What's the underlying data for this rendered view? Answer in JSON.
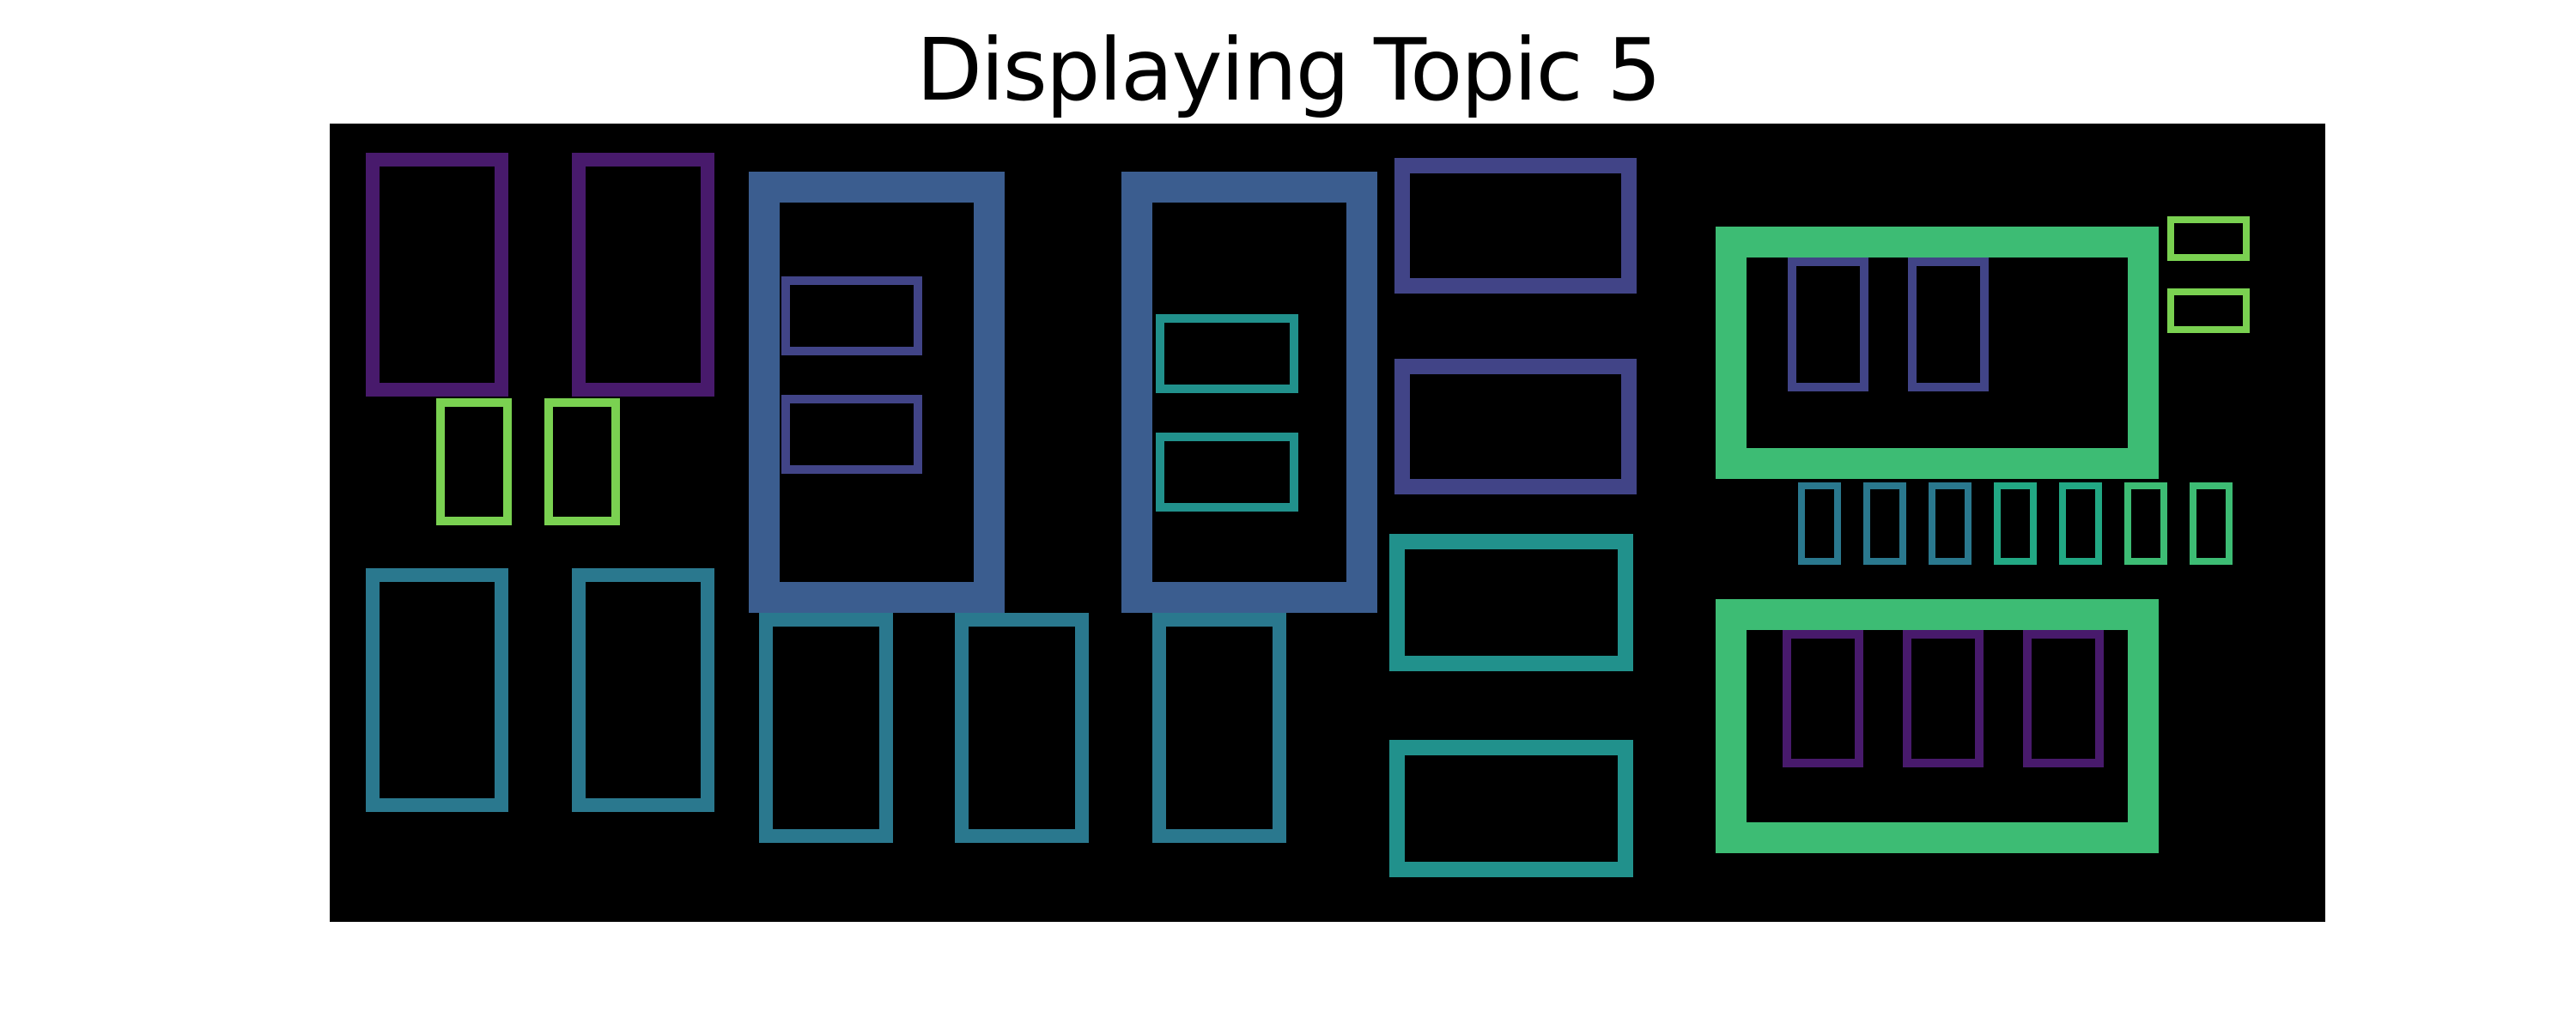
{
  "title": "Displaying Topic 5",
  "canvas_background": "#000000",
  "page_background": "#ffffff",
  "palette": {
    "dark_purple": "#481a6c",
    "indigo": "#414487",
    "steel_blue": "#3b5d8f",
    "blue_teal": "#2a788e",
    "teal": "#21918c",
    "green_teal": "#22a884",
    "green": "#3dbc74",
    "lime": "#7ad151"
  },
  "glyph_description": "missing-glyph boxes (tofu) rendered in place of words"
}
